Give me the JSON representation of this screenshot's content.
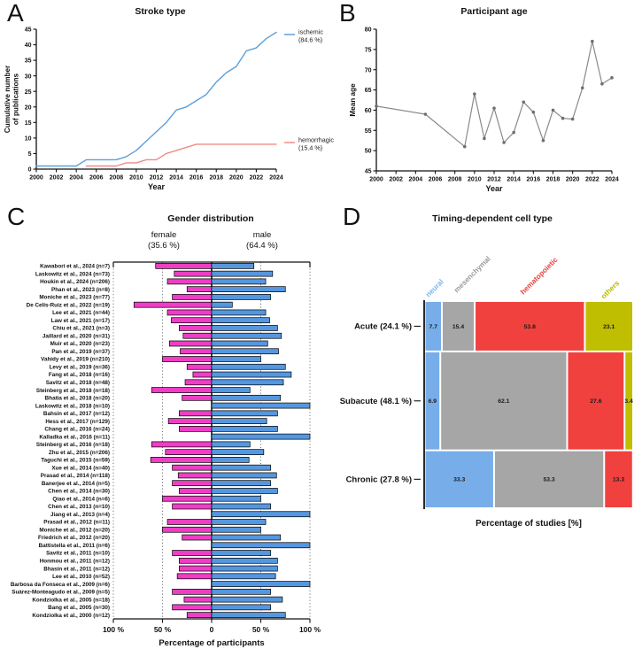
{
  "panels": {
    "a": {
      "letter": "A"
    },
    "b": {
      "letter": "B"
    },
    "c": {
      "letter": "C"
    },
    "d": {
      "letter": "D"
    }
  },
  "chart_data": [
    {
      "panel": "A",
      "type": "line",
      "title": "Stroke type",
      "xlabel": "Year",
      "ylabel_line1": "Cumulative number",
      "ylabel_line2": "of publications",
      "xlim": [
        2000,
        2024
      ],
      "ylim": [
        0,
        45
      ],
      "xticks": [
        2000,
        2002,
        2004,
        2006,
        2008,
        2010,
        2012,
        2014,
        2016,
        2018,
        2020,
        2022,
        2024
      ],
      "yticks": [
        0,
        5,
        10,
        15,
        20,
        25,
        30,
        35,
        40,
        45
      ],
      "legend_position": "right",
      "series": [
        {
          "name": "ischemic",
          "pct_label": "(84.6 %)",
          "color": "#5E9FD8",
          "points": [
            [
              2000,
              1
            ],
            [
              2001,
              1
            ],
            [
              2002,
              1
            ],
            [
              2003,
              1
            ],
            [
              2004,
              1
            ],
            [
              2005,
              3
            ],
            [
              2006,
              3
            ],
            [
              2007,
              3
            ],
            [
              2008,
              3
            ],
            [
              2009,
              4
            ],
            [
              2010,
              6
            ],
            [
              2011,
              9
            ],
            [
              2012,
              12
            ],
            [
              2013,
              15
            ],
            [
              2014,
              19
            ],
            [
              2015,
              20
            ],
            [
              2016,
              22
            ],
            [
              2017,
              24
            ],
            [
              2018,
              28
            ],
            [
              2019,
              31
            ],
            [
              2020,
              33
            ],
            [
              2021,
              38
            ],
            [
              2022,
              39
            ],
            [
              2023,
              42
            ],
            [
              2024,
              44
            ]
          ]
        },
        {
          "name": "hemorrhagic",
          "pct_label": "(15.4 %)",
          "color": "#ED8C84",
          "points": [
            [
              2005,
              1
            ],
            [
              2006,
              1
            ],
            [
              2007,
              1
            ],
            [
              2008,
              1
            ],
            [
              2009,
              2
            ],
            [
              2010,
              2
            ],
            [
              2011,
              3
            ],
            [
              2012,
              3
            ],
            [
              2013,
              5
            ],
            [
              2014,
              6
            ],
            [
              2015,
              7
            ],
            [
              2016,
              8
            ],
            [
              2017,
              8
            ],
            [
              2018,
              8
            ],
            [
              2019,
              8
            ],
            [
              2020,
              8
            ],
            [
              2021,
              8
            ],
            [
              2022,
              8
            ],
            [
              2023,
              8
            ],
            [
              2024,
              8
            ]
          ]
        }
      ]
    },
    {
      "panel": "B",
      "type": "line",
      "title": "Participant age",
      "xlabel": "Year",
      "ylabel": "Mean age",
      "xlim": [
        2000,
        2024
      ],
      "ylim": [
        45,
        80
      ],
      "xticks": [
        2000,
        2002,
        2004,
        2006,
        2008,
        2010,
        2012,
        2014,
        2016,
        2018,
        2020,
        2022,
        2024
      ],
      "yticks": [
        45,
        50,
        55,
        60,
        65,
        70,
        75,
        80
      ],
      "series": [
        {
          "name": "mean-age",
          "color": "#8A8A8A",
          "marker_color": "#6F6F6F",
          "points": [
            [
              2000,
              61
            ],
            [
              2005,
              59
            ],
            [
              2009,
              51
            ],
            [
              2010,
              64
            ],
            [
              2011,
              53
            ],
            [
              2012,
              60.5
            ],
            [
              2013,
              52
            ],
            [
              2014,
              54.5
            ],
            [
              2015,
              62
            ],
            [
              2016,
              59.5
            ],
            [
              2017,
              52.5
            ],
            [
              2018,
              60
            ],
            [
              2019,
              58
            ],
            [
              2020,
              57.8
            ],
            [
              2021,
              65.5
            ],
            [
              2022,
              77
            ],
            [
              2023,
              66.5
            ],
            [
              2024,
              68
            ]
          ]
        }
      ]
    },
    {
      "panel": "C",
      "type": "bar",
      "subtype": "diverging-horizontal",
      "title": "Gender distribution",
      "xlabel": "Percentage of participants",
      "left_header": {
        "label": "female",
        "pct": "(35.6 %)",
        "color": "#EE3EC5"
      },
      "right_header": {
        "label": "male",
        "pct": "(64.4 %)",
        "color": "#5597DF"
      },
      "xtick_labels": [
        "100 %",
        "50 %",
        "0",
        "50 %",
        "100 %"
      ],
      "studies": [
        {
          "label": "Kawabori et al., 2024 (n=7)",
          "female": 57,
          "male": 43
        },
        {
          "label": "Laskowitz et al., 2024 (n=73)",
          "female": 38,
          "male": 62
        },
        {
          "label": "Houkin et al., 2024 (n=206)",
          "female": 45,
          "male": 55
        },
        {
          "label": "Phan et al., 2023 (n=8)",
          "female": 25,
          "male": 75
        },
        {
          "label": "Moniche et al., 2023 (n=77)",
          "female": 40,
          "male": 60
        },
        {
          "label": "De Celis-Ruiz et al., 2022 (n=19)",
          "female": 79,
          "male": 21
        },
        {
          "label": "Lee et al., 2021 (n=44)",
          "female": 45,
          "male": 55
        },
        {
          "label": "Law et al., 2021 (n=17)",
          "female": 41,
          "male": 59
        },
        {
          "label": "Chiu et al., 2021 (n=3)",
          "female": 33,
          "male": 67
        },
        {
          "label": "Jaillard et al., 2020 (n=31)",
          "female": 29,
          "male": 71
        },
        {
          "label": "Muir et al., 2020 (n=23)",
          "female": 43,
          "male": 57
        },
        {
          "label": "Pan et al., 2019 (n=37)",
          "female": 32,
          "male": 68
        },
        {
          "label": "Vahidy et al., 2019 (n=210)",
          "female": 50,
          "male": 50
        },
        {
          "label": "Levy et al., 2019 (n=36)",
          "female": 25,
          "male": 75
        },
        {
          "label": "Fang et al., 2018 (n=16)",
          "female": 19,
          "male": 81
        },
        {
          "label": "Savitz et al., 2018 (n=48)",
          "female": 27,
          "male": 73
        },
        {
          "label": "Steinberg et al., 2018 (n=18)",
          "female": 61,
          "male": 39
        },
        {
          "label": "Bhatia et al., 2018 (n=20)",
          "female": 30,
          "male": 70
        },
        {
          "label": "Laskowitz et al., 2018 (n=10)",
          "female": 0,
          "male": 100
        },
        {
          "label": "Bahsin et al., 2017 (n=12)",
          "female": 33,
          "male": 67
        },
        {
          "label": "Hess et al., 2017 (n=129)",
          "female": 44,
          "male": 56
        },
        {
          "label": "Chang et al., 2016 (n=24)",
          "female": 33,
          "male": 67
        },
        {
          "label": "Kalladka et al., 2016 (n=11)",
          "female": 0,
          "male": 100
        },
        {
          "label": "Steinberg et al., 2016 (n=18)",
          "female": 61,
          "male": 39
        },
        {
          "label": "Zhu et al., 2015 (n=206)",
          "female": 47,
          "male": 53
        },
        {
          "label": "Taguchi et al., 2015 (n=59)",
          "female": 62,
          "male": 38
        },
        {
          "label": "Xue et al., 2014 (n=40)",
          "female": 40,
          "male": 60
        },
        {
          "label": "Prasad et al., 2014 (n=118)",
          "female": 34,
          "male": 66
        },
        {
          "label": "Banerjee et al., 2014 (n=5)",
          "female": 40,
          "male": 60
        },
        {
          "label": "Chen et al., 2014 (n=30)",
          "female": 33,
          "male": 67
        },
        {
          "label": "Qiao et al., 2014 (n=6)",
          "female": 50,
          "male": 50
        },
        {
          "label": "Chen et al., 2013 (n=10)",
          "female": 40,
          "male": 60
        },
        {
          "label": "Jiang et al., 2013 (n=4)",
          "female": 0,
          "male": 100
        },
        {
          "label": "Prasad et al., 2012 (n=11)",
          "female": 45,
          "male": 55
        },
        {
          "label": "Moniche et al., 2012 (n=20)",
          "female": 50,
          "male": 50
        },
        {
          "label": "Friedrich et al., 2012 (n=20)",
          "female": 30,
          "male": 70
        },
        {
          "label": "Battistella et al., 2011 (n=6)",
          "female": 0,
          "male": 100
        },
        {
          "label": "Savitz et al., 2011 (n=10)",
          "female": 40,
          "male": 60
        },
        {
          "label": "Honmou et al., 2011 (n=12)",
          "female": 33,
          "male": 67
        },
        {
          "label": "Bhasin et al., 2011 (n=12)",
          "female": 33,
          "male": 67
        },
        {
          "label": "Lee et al., 2010 (n=52)",
          "female": 35,
          "male": 65
        },
        {
          "label": "Barbosa da Fonseca et al., 2009 (n=6)",
          "female": 0,
          "male": 100
        },
        {
          "label": "Suárez-Monteagudo et al., 2009 (n=5)",
          "female": 40,
          "male": 60
        },
        {
          "label": "Kondziolka et al., 2005 (n=18)",
          "female": 28,
          "male": 72
        },
        {
          "label": "Bang et al., 2005 (n=30)",
          "female": 40,
          "male": 60
        },
        {
          "label": "Kondziolka et al., 2000 (n=12)",
          "female": 25,
          "male": 75
        }
      ]
    },
    {
      "panel": "D",
      "type": "mosaic",
      "title": "Timing-dependent cell type",
      "xlabel": "Percentage of studies [%]",
      "cell_types": [
        {
          "name": "neural",
          "color": "#77AEE9",
          "label_color": "#7FB5EB"
        },
        {
          "name": "mesenchymal",
          "color": "#A6A6A6",
          "label_color": "#9B9B9B"
        },
        {
          "name": "hematopoietic",
          "color": "#F0413F",
          "label_color": "#E4423E"
        },
        {
          "name": "others",
          "color": "#BFBE00",
          "label_color": "#B9B900"
        }
      ],
      "rows": [
        {
          "label": "Acute (24.1 %)",
          "height_pct": 24.1,
          "values": [
            7.7,
            15.4,
            53.8,
            23.1
          ]
        },
        {
          "label": "Subacute (48.1 %)",
          "height_pct": 48.1,
          "values": [
            6.9,
            62.1,
            27.6,
            3.4
          ]
        },
        {
          "label": "Chronic (27.8 %)",
          "height_pct": 27.8,
          "values": [
            33.3,
            53.3,
            13.3,
            0
          ]
        }
      ]
    }
  ]
}
